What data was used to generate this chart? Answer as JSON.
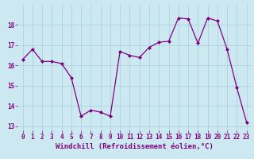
{
  "x": [
    0,
    1,
    2,
    3,
    4,
    5,
    6,
    7,
    8,
    9,
    10,
    11,
    12,
    13,
    14,
    15,
    16,
    17,
    18,
    19,
    20,
    21,
    22,
    23
  ],
  "y": [
    16.3,
    16.8,
    16.2,
    16.2,
    16.1,
    15.4,
    13.5,
    13.8,
    13.7,
    13.5,
    16.7,
    16.5,
    16.4,
    16.9,
    17.15,
    17.2,
    18.35,
    18.3,
    17.1,
    18.35,
    18.2,
    16.8,
    14.9,
    13.2
  ],
  "xlim": [
    -0.5,
    23.5
  ],
  "ylim": [
    12.8,
    19.0
  ],
  "yticks": [
    13,
    14,
    15,
    16,
    17,
    18
  ],
  "xticks": [
    0,
    1,
    2,
    3,
    4,
    5,
    6,
    7,
    8,
    9,
    10,
    11,
    12,
    13,
    14,
    15,
    16,
    17,
    18,
    19,
    20,
    21,
    22,
    23
  ],
  "xlabel": "Windchill (Refroidissement éolien,°C)",
  "line_color": "#800080",
  "marker": "D",
  "marker_size": 2.0,
  "bg_color": "#cce8f0",
  "grid_color": "#aaccd8",
  "tick_color": "#800080",
  "label_color": "#800080",
  "tick_fontsize": 5.5,
  "xlabel_fontsize": 6.5
}
